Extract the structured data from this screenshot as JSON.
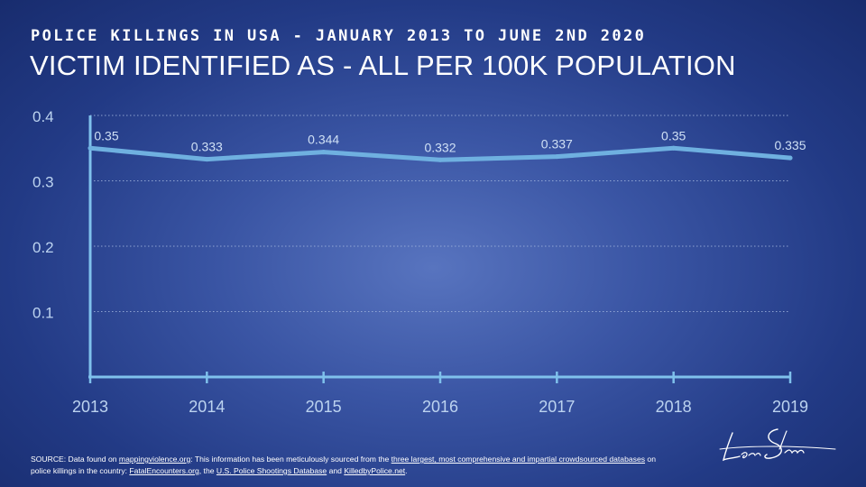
{
  "header": {
    "supertitle": "POLICE KILLINGS IN USA - JANUARY 2013 TO JUNE 2ND 2020",
    "title": "VICTIM IDENTIFIED AS - ALL PER 100K POPULATION"
  },
  "chart_data": {
    "type": "line",
    "x": [
      "2013",
      "2014",
      "2015",
      "2016",
      "2017",
      "2018",
      "2019"
    ],
    "series": [
      {
        "values": [
          0.35,
          0.333,
          0.344,
          0.332,
          0.337,
          0.35,
          0.335
        ]
      }
    ],
    "data_labels": [
      "0.35",
      "0.333",
      "0.344",
      "0.332",
      "0.337",
      "0.35",
      "0.335"
    ],
    "yticks": [
      "0.1",
      "0.2",
      "0.3",
      "0.4"
    ],
    "ytick_values": [
      0.1,
      0.2,
      0.3,
      0.4
    ],
    "ylim": [
      0,
      0.4
    ],
    "grid": "horizontal dotted",
    "title": "VICTIM IDENTIFIED AS - ALL PER 100K POPULATION",
    "xlabel": "",
    "ylabel": ""
  },
  "colors": {
    "line": "#6fb0e0",
    "axis": "#7fc1ec",
    "grid": "#9fb3dc",
    "tick_text": "#bcd3f0",
    "label_text": "#cfe0f5"
  },
  "source": {
    "prefix": "SOURCE: Data found on ",
    "link1": "mappingviolence.org",
    "middle1": ": This information has been meticulously sourced from the ",
    "link2": "three largest, most comprehensive and impartial crowdsourced databases",
    "middle2": " on police killings in the country: ",
    "link3": "FatalEncounters.org",
    "middle3": ", the ",
    "link4": "U.S. Police Shootings Database",
    "middle4": " and ",
    "link5": "KilledbyPolice.net",
    "suffix": "."
  },
  "signature": {
    "text": "Lean Shirreds",
    "icon": "handwritten-signature"
  }
}
